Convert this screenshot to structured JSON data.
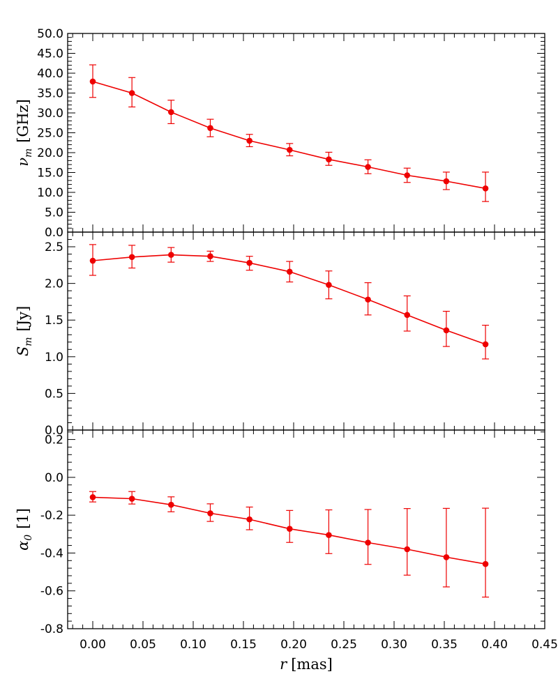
{
  "chart_data": [
    {
      "type": "line",
      "panel": "top",
      "ylabel_symbol": "ν",
      "ylabel_sub": "m",
      "ylabel_unit": "[GHz]",
      "ylim": [
        0,
        50
      ],
      "yticks": [
        0,
        5,
        10,
        15,
        20,
        25,
        30,
        35,
        40,
        45,
        50
      ],
      "ytick_labels": [
        "0.0",
        "5.0",
        "10.0",
        "15.0",
        "20.0",
        "25.0",
        "30.0",
        "35.0",
        "40.0",
        "45.0",
        "50.0"
      ],
      "series": [
        {
          "x": [
            0.0,
            0.039,
            0.078,
            0.117,
            0.156,
            0.196,
            0.235,
            0.274,
            0.313,
            0.352,
            0.391
          ],
          "y": [
            37.9,
            35.0,
            30.2,
            26.2,
            23.0,
            20.7,
            18.3,
            16.4,
            14.3,
            12.8,
            11.0
          ],
          "yerr_low": [
            4.0,
            3.5,
            2.9,
            2.2,
            1.5,
            1.5,
            1.5,
            1.7,
            1.8,
            2.1,
            3.3
          ],
          "yerr_high": [
            4.2,
            3.9,
            3.0,
            2.2,
            1.6,
            1.6,
            1.8,
            1.8,
            1.8,
            2.3,
            4.1
          ]
        }
      ]
    },
    {
      "type": "line",
      "panel": "middle",
      "ylabel_symbol": "S",
      "ylabel_sub": "m",
      "ylabel_unit": "[Jy]",
      "ylim": [
        0,
        2.7
      ],
      "yticks": [
        0,
        0.5,
        1.0,
        1.5,
        2.0,
        2.5
      ],
      "ytick_labels": [
        "0.0",
        "0.5",
        "1.0",
        "1.5",
        "2.0",
        "2.5"
      ],
      "series": [
        {
          "x": [
            0.0,
            0.039,
            0.078,
            0.117,
            0.156,
            0.196,
            0.235,
            0.274,
            0.313,
            0.352,
            0.391
          ],
          "y": [
            2.31,
            2.36,
            2.39,
            2.37,
            2.28,
            2.16,
            1.98,
            1.78,
            1.57,
            1.36,
            1.17
          ],
          "yerr_low": [
            0.2,
            0.15,
            0.1,
            0.07,
            0.1,
            0.14,
            0.19,
            0.21,
            0.22,
            0.22,
            0.2
          ],
          "yerr_high": [
            0.22,
            0.16,
            0.1,
            0.07,
            0.09,
            0.14,
            0.19,
            0.23,
            0.26,
            0.26,
            0.26
          ]
        }
      ]
    },
    {
      "type": "line",
      "panel": "bottom",
      "ylabel_symbol": "α",
      "ylabel_sub": "0",
      "ylabel_unit": "[1]",
      "xlabel_symbol": "r",
      "xlabel_unit": "[mas]",
      "ylim": [
        -0.8,
        0.25
      ],
      "yticks": [
        -0.8,
        -0.6,
        -0.4,
        -0.2,
        0.0,
        0.2
      ],
      "ytick_labels": [
        "-0.8",
        "-0.6",
        "-0.4",
        "-0.2",
        "0.0",
        "0.2"
      ],
      "xlim": [
        -0.025,
        0.45
      ],
      "xticks": [
        0.0,
        0.05,
        0.1,
        0.15,
        0.2,
        0.25,
        0.3,
        0.35,
        0.4,
        0.45
      ],
      "xtick_labels": [
        "0.00",
        "0.05",
        "0.10",
        "0.15",
        "0.20",
        "0.25",
        "0.30",
        "0.35",
        "0.40",
        "0.45"
      ],
      "series": [
        {
          "x": [
            0.0,
            0.039,
            0.078,
            0.117,
            0.156,
            0.196,
            0.235,
            0.274,
            0.313,
            0.352,
            0.391
          ],
          "y": [
            -0.105,
            -0.113,
            -0.145,
            -0.19,
            -0.222,
            -0.272,
            -0.305,
            -0.345,
            -0.38,
            -0.422,
            -0.458
          ],
          "yerr_low": [
            0.025,
            0.028,
            0.037,
            0.043,
            0.055,
            0.072,
            0.098,
            0.115,
            0.137,
            0.157,
            0.175
          ],
          "yerr_high": [
            0.03,
            0.038,
            0.042,
            0.05,
            0.065,
            0.097,
            0.133,
            0.175,
            0.215,
            0.258,
            0.295
          ]
        }
      ]
    }
  ],
  "colors": {
    "series": "#ee0000",
    "axes": "#000000",
    "background": "#ffffff"
  }
}
